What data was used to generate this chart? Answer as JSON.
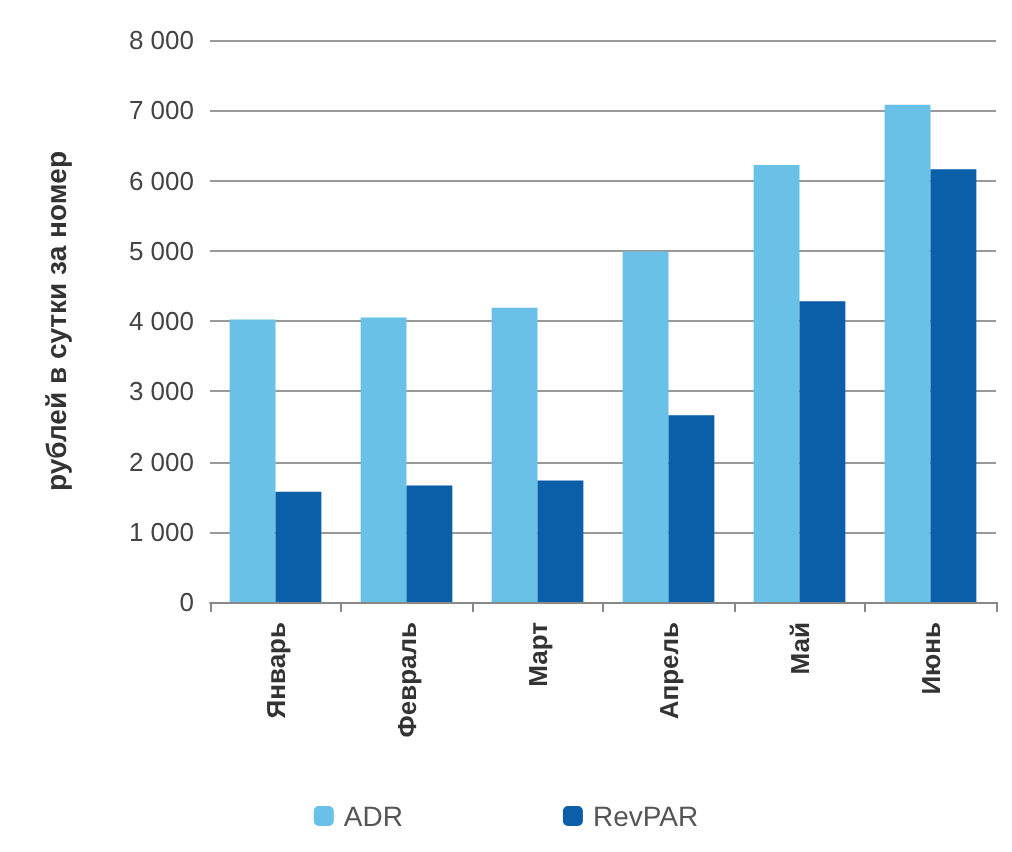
{
  "chart_data": {
    "type": "bar",
    "ylabel": "рублей в сутки за номер",
    "categories": [
      "Январь",
      "Февраль",
      "Март",
      "Апрель",
      "Май",
      "Июнь"
    ],
    "series": [
      {
        "name": "ADR",
        "color": "#6ac1e8",
        "values": [
          4020,
          4050,
          4190,
          4990,
          6220,
          7080
        ]
      },
      {
        "name": "RevPAR",
        "color": "#0b5ea8",
        "values": [
          1570,
          1660,
          1730,
          2660,
          4280,
          6160
        ]
      }
    ],
    "ylim": [
      0,
      8000
    ],
    "yticks": [
      {
        "value": 0,
        "label": "0"
      },
      {
        "value": 1000,
        "label": "1 000"
      },
      {
        "value": 2000,
        "label": "2 000"
      },
      {
        "value": 3000,
        "label": "3 000"
      },
      {
        "value": 4000,
        "label": "4 000"
      },
      {
        "value": 5000,
        "label": "5 000"
      },
      {
        "value": 6000,
        "label": "6 000"
      },
      {
        "value": 7000,
        "label": "7 000"
      },
      {
        "value": 8000,
        "label": "8 000"
      }
    ],
    "grid": "y",
    "legend": "bottom"
  }
}
